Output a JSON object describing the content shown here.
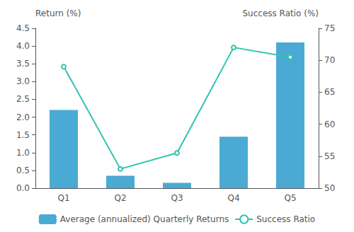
{
  "chart_data": {
    "type": "bar",
    "categories": [
      "Q1",
      "Q2",
      "Q3",
      "Q4",
      "Q5"
    ],
    "series": [
      {
        "name": "Average (annualized) Quarterly Returns",
        "type": "bar",
        "color": "#4baad4",
        "values": [
          2.2,
          0.35,
          0.15,
          1.45,
          4.1
        ]
      },
      {
        "name": "Success Ratio",
        "type": "line",
        "color": "#2ec4b0",
        "axis": "y2",
        "values": [
          69.0,
          53.0,
          55.5,
          72.0,
          70.5
        ]
      }
    ],
    "ylabel": "Return (%)",
    "y2label": "Success Ratio (%)",
    "ylim": [
      0,
      4.5
    ],
    "yticks": [
      {
        "value": 0,
        "label": "0.0"
      },
      0.5,
      {
        "value": 1.0,
        "label": "1.0"
      },
      1.5,
      {
        "value": 2.0,
        "label": "2.0"
      },
      2.5,
      {
        "value": 3.0,
        "label": "3.0"
      },
      3.5,
      {
        "value": 4.0,
        "label": "4.0"
      },
      4.5
    ],
    "y2lim": [
      50,
      75
    ],
    "y2ticks": [
      50,
      55,
      60,
      65,
      70,
      75
    ],
    "grid": false,
    "legend": "bottom"
  }
}
